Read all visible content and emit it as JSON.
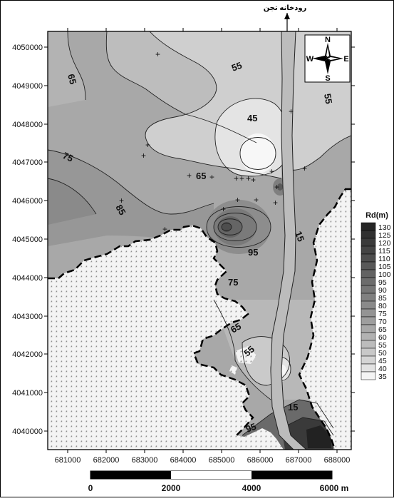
{
  "map": {
    "river_label": "رودخانه تجن",
    "compass": {
      "n": "N",
      "s": "S",
      "e": "E",
      "w": "W"
    },
    "y_ticks": [
      "4050000",
      "4049000",
      "4048000",
      "4047000",
      "4046000",
      "4045000",
      "4044000",
      "4043000",
      "4042000",
      "4041000",
      "4040000"
    ],
    "x_ticks": [
      "681000",
      "682000",
      "683000",
      "684000",
      "685000",
      "686000",
      "687000",
      "688000"
    ],
    "contour_labels": [
      "65",
      "55",
      "55",
      "45",
      "75",
      "65",
      "85",
      "15",
      "95",
      "75",
      "65",
      "55",
      "15",
      "95"
    ],
    "legend": {
      "title": "Rd(m)",
      "values": [
        "130",
        "125",
        "120",
        "115",
        "110",
        "105",
        "100",
        "95",
        "90",
        "85",
        "80",
        "75",
        "70",
        "65",
        "60",
        "55",
        "50",
        "45",
        "40",
        "35"
      ]
    },
    "scale_bar": {
      "labels": [
        "0",
        "2000",
        "4000",
        "6000",
        "m"
      ]
    }
  }
}
